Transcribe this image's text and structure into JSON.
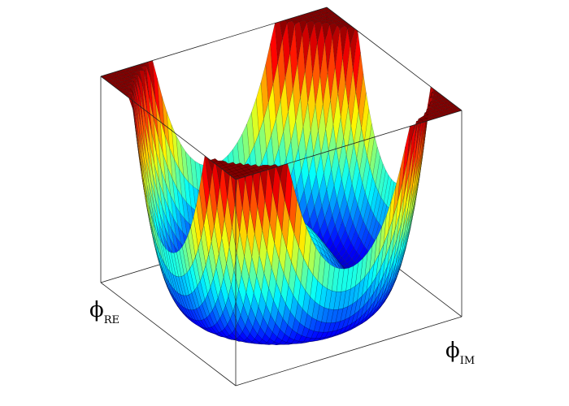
{
  "chart_data": {
    "type": "surface",
    "x_label": {
      "symbol": "ϕ",
      "subscript": "RE"
    },
    "y_label": {
      "symbol": "ϕ",
      "subscript": "IM"
    }
  }
}
